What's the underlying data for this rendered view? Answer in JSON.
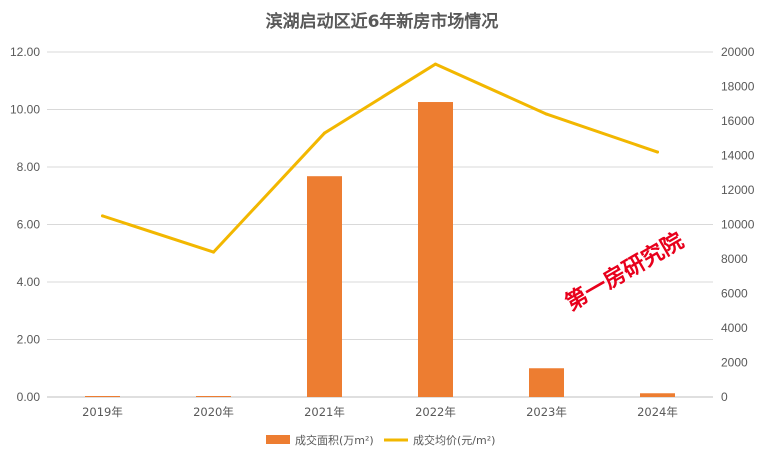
{
  "chart_data": {
    "type": "bar+line",
    "title": "滨湖启动区近6年新房市场情况",
    "categories": [
      "2019年",
      "2020年",
      "2021年",
      "2022年",
      "2023年",
      "2024年"
    ],
    "series": [
      {
        "name": "成交面积(万m²)",
        "type": "bar",
        "axis": "left",
        "color": "#ed7d31",
        "values": [
          0.03,
          0.03,
          7.68,
          10.26,
          1.0,
          0.13
        ]
      },
      {
        "name": "成交均价(元/m²)",
        "type": "line",
        "axis": "right",
        "color": "#f2b700",
        "values": [
          10500,
          8400,
          15300,
          19300,
          16400,
          14200
        ]
      }
    ],
    "y_left": {
      "min": 0,
      "max": 12,
      "step": 2,
      "ticks": [
        "0.00",
        "2.00",
        "4.00",
        "6.00",
        "8.00",
        "10.00",
        "12.00"
      ]
    },
    "y_right": {
      "min": 0,
      "max": 20000,
      "step": 2000,
      "ticks": [
        "0",
        "2000",
        "4000",
        "6000",
        "8000",
        "10000",
        "12000",
        "14000",
        "16000",
        "18000",
        "20000"
      ]
    },
    "grid": true,
    "legend": "bottom-center",
    "watermark": "第一房研究院"
  }
}
